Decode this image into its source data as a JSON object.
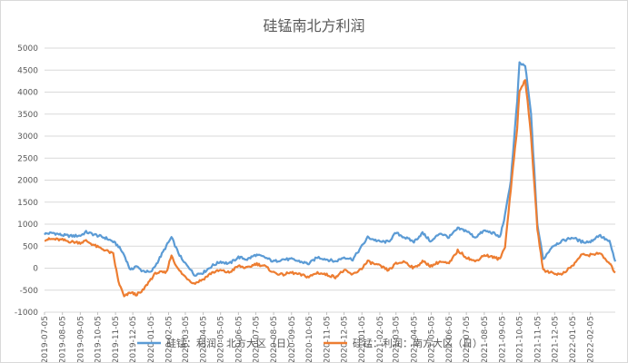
{
  "chart_data": {
    "type": "line",
    "title": "硅锰南北方利润",
    "xlabel": "",
    "ylabel": "",
    "ylim": [
      -1000,
      5000
    ],
    "yticks": [
      -1000,
      -500,
      0,
      500,
      1000,
      1500,
      2000,
      2500,
      3000,
      3500,
      4000,
      4500,
      5000
    ],
    "xlim": [
      "2019-07-05",
      "2022-03-20"
    ],
    "xticks": [
      "2019-07-05",
      "2019-08-05",
      "2019-09-05",
      "2019-10-05",
      "2019-11-05",
      "2019-12-05",
      "2020-01-05",
      "2020-02-05",
      "2020-03-05",
      "2020-04-05",
      "2020-05-05",
      "2020-06-05",
      "2020-07-05",
      "2020-08-05",
      "2020-09-05",
      "2020-10-05",
      "2020-11-05",
      "2020-12-05",
      "2021-01-05",
      "2021-02-05",
      "2021-03-05",
      "2021-04-05",
      "2021-05-05",
      "2021-06-05",
      "2021-07-05",
      "2021-08-05",
      "2021-09-05",
      "2021-10-05",
      "2021-11-05",
      "2021-12-05",
      "2022-01-05",
      "2022-02-05"
    ],
    "grid": "horizontal",
    "legend": "bottom",
    "series": [
      {
        "name": "硅锰：利润：北方大区（日）",
        "color": "#5b9bd5",
        "points": [
          [
            "2019-07-05",
            780
          ],
          [
            "2019-07-20",
            800
          ],
          [
            "2019-08-05",
            750
          ],
          [
            "2019-08-20",
            730
          ],
          [
            "2019-09-05",
            740
          ],
          [
            "2019-09-15",
            820
          ],
          [
            "2019-10-05",
            740
          ],
          [
            "2019-10-20",
            680
          ],
          [
            "2019-11-01",
            600
          ],
          [
            "2019-11-10",
            500
          ],
          [
            "2019-11-20",
            300
          ],
          [
            "2019-12-01",
            -50
          ],
          [
            "2019-12-10",
            50
          ],
          [
            "2019-12-20",
            -50
          ],
          [
            "2020-01-05",
            -100
          ],
          [
            "2020-01-15",
            100
          ],
          [
            "2020-02-01",
            500
          ],
          [
            "2020-02-10",
            700
          ],
          [
            "2020-02-20",
            400
          ],
          [
            "2020-03-01",
            150
          ],
          [
            "2020-03-10",
            50
          ],
          [
            "2020-03-20",
            -150
          ],
          [
            "2020-04-05",
            -100
          ],
          [
            "2020-04-20",
            50
          ],
          [
            "2020-05-05",
            150
          ],
          [
            "2020-05-20",
            100
          ],
          [
            "2020-06-05",
            250
          ],
          [
            "2020-06-20",
            200
          ],
          [
            "2020-07-05",
            300
          ],
          [
            "2020-07-20",
            250
          ],
          [
            "2020-08-05",
            150
          ],
          [
            "2020-08-20",
            200
          ],
          [
            "2020-09-05",
            200
          ],
          [
            "2020-09-20",
            150
          ],
          [
            "2020-10-05",
            100
          ],
          [
            "2020-10-20",
            250
          ],
          [
            "2020-11-05",
            200
          ],
          [
            "2020-11-20",
            150
          ],
          [
            "2020-12-05",
            250
          ],
          [
            "2020-12-20",
            200
          ],
          [
            "2021-01-05",
            500
          ],
          [
            "2021-01-15",
            700
          ],
          [
            "2021-02-05",
            600
          ],
          [
            "2021-02-20",
            600
          ],
          [
            "2021-03-05",
            800
          ],
          [
            "2021-03-20",
            700
          ],
          [
            "2021-04-05",
            600
          ],
          [
            "2021-04-20",
            800
          ],
          [
            "2021-05-05",
            600
          ],
          [
            "2021-05-20",
            800
          ],
          [
            "2021-06-05",
            700
          ],
          [
            "2021-06-20",
            900
          ],
          [
            "2021-07-05",
            850
          ],
          [
            "2021-07-20",
            700
          ],
          [
            "2021-08-05",
            850
          ],
          [
            "2021-08-20",
            800
          ],
          [
            "2021-09-01",
            700
          ],
          [
            "2021-09-10",
            1200
          ],
          [
            "2021-09-20",
            2000
          ],
          [
            "2021-10-01",
            3800
          ],
          [
            "2021-10-05",
            4650
          ],
          [
            "2021-10-15",
            4600
          ],
          [
            "2021-10-25",
            3500
          ],
          [
            "2021-11-05",
            1000
          ],
          [
            "2021-11-15",
            200
          ],
          [
            "2021-12-01",
            500
          ],
          [
            "2021-12-15",
            600
          ],
          [
            "2022-01-05",
            700
          ],
          [
            "2022-01-20",
            600
          ],
          [
            "2022-02-05",
            600
          ],
          [
            "2022-02-20",
            750
          ],
          [
            "2022-03-10",
            600
          ],
          [
            "2022-03-20",
            150
          ]
        ]
      },
      {
        "name": "硅锰：利润：南方大区（日）",
        "color": "#ed7d31",
        "points": [
          [
            "2019-07-05",
            650
          ],
          [
            "2019-07-20",
            660
          ],
          [
            "2019-08-05",
            640
          ],
          [
            "2019-08-20",
            600
          ],
          [
            "2019-09-05",
            580
          ],
          [
            "2019-09-15",
            620
          ],
          [
            "2019-10-05",
            480
          ],
          [
            "2019-10-20",
            400
          ],
          [
            "2019-11-01",
            320
          ],
          [
            "2019-11-10",
            -300
          ],
          [
            "2019-11-20",
            -650
          ],
          [
            "2019-12-01",
            -550
          ],
          [
            "2019-12-10",
            -600
          ],
          [
            "2019-12-20",
            -550
          ],
          [
            "2020-01-05",
            -250
          ],
          [
            "2020-01-15",
            -100
          ],
          [
            "2020-02-01",
            -100
          ],
          [
            "2020-02-10",
            300
          ],
          [
            "2020-02-20",
            0
          ],
          [
            "2020-03-01",
            -150
          ],
          [
            "2020-03-10",
            -250
          ],
          [
            "2020-03-20",
            -350
          ],
          [
            "2020-04-05",
            -250
          ],
          [
            "2020-04-20",
            -100
          ],
          [
            "2020-05-05",
            -50
          ],
          [
            "2020-05-20",
            -100
          ],
          [
            "2020-06-05",
            50
          ],
          [
            "2020-06-20",
            0
          ],
          [
            "2020-07-05",
            100
          ],
          [
            "2020-07-20",
            50
          ],
          [
            "2020-08-05",
            -100
          ],
          [
            "2020-08-20",
            -150
          ],
          [
            "2020-09-05",
            -100
          ],
          [
            "2020-09-20",
            -150
          ],
          [
            "2020-10-05",
            -200
          ],
          [
            "2020-10-20",
            -100
          ],
          [
            "2020-11-05",
            -150
          ],
          [
            "2020-11-20",
            -200
          ],
          [
            "2020-12-05",
            -50
          ],
          [
            "2020-12-20",
            -150
          ],
          [
            "2021-01-05",
            0
          ],
          [
            "2021-01-15",
            150
          ],
          [
            "2021-02-05",
            50
          ],
          [
            "2021-02-20",
            -50
          ],
          [
            "2021-03-05",
            100
          ],
          [
            "2021-03-20",
            150
          ],
          [
            "2021-04-05",
            0
          ],
          [
            "2021-04-20",
            150
          ],
          [
            "2021-05-05",
            50
          ],
          [
            "2021-05-20",
            150
          ],
          [
            "2021-06-05",
            100
          ],
          [
            "2021-06-20",
            400
          ],
          [
            "2021-07-05",
            250
          ],
          [
            "2021-07-20",
            150
          ],
          [
            "2021-08-05",
            300
          ],
          [
            "2021-08-20",
            250
          ],
          [
            "2021-09-01",
            200
          ],
          [
            "2021-09-10",
            500
          ],
          [
            "2021-09-20",
            1800
          ],
          [
            "2021-10-01",
            3200
          ],
          [
            "2021-10-05",
            4000
          ],
          [
            "2021-10-15",
            4300
          ],
          [
            "2021-10-25",
            3000
          ],
          [
            "2021-11-05",
            900
          ],
          [
            "2021-11-15",
            -50
          ],
          [
            "2021-12-01",
            -100
          ],
          [
            "2021-12-15",
            -150
          ],
          [
            "2022-01-05",
            50
          ],
          [
            "2022-01-20",
            300
          ],
          [
            "2022-02-05",
            300
          ],
          [
            "2022-02-20",
            350
          ],
          [
            "2022-03-10",
            100
          ],
          [
            "2022-03-20",
            -100
          ]
        ]
      }
    ]
  }
}
